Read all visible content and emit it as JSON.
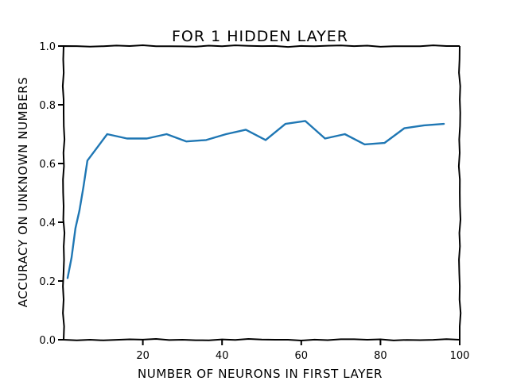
{
  "chart_data": {
    "type": "line",
    "title": "FOR 1 HIDDEN LAYER",
    "xlabel": "NUMBER OF NEURONS IN FIRST LAYER",
    "ylabel": "ACCURACY ON UNKNOWN NUMBERS",
    "xlim": [
      0,
      100
    ],
    "ylim": [
      0.0,
      1.0
    ],
    "x_ticks": [
      {
        "value": 20,
        "label": "20"
      },
      {
        "value": 40,
        "label": "40"
      },
      {
        "value": 60,
        "label": "60"
      },
      {
        "value": 80,
        "label": "80"
      },
      {
        "value": 100,
        "label": "100"
      }
    ],
    "y_ticks": [
      {
        "value": 0.0,
        "label": "0.0"
      },
      {
        "value": 0.2,
        "label": "0.2"
      },
      {
        "value": 0.4,
        "label": "0.4"
      },
      {
        "value": 0.6,
        "label": "0.6"
      },
      {
        "value": 0.8,
        "label": "0.8"
      },
      {
        "value": 1.0,
        "label": "1.0"
      }
    ],
    "grid": false,
    "style": "xkcd",
    "series": [
      {
        "color": "#1f77b4",
        "x": [
          1,
          2,
          3,
          4,
          5,
          6,
          11,
          16,
          21,
          26,
          31,
          36,
          41,
          46,
          51,
          56,
          61,
          66,
          71,
          76,
          81,
          86,
          91,
          96
        ],
        "y": [
          0.21,
          0.28,
          0.38,
          0.44,
          0.52,
          0.61,
          0.7,
          0.685,
          0.685,
          0.7,
          0.675,
          0.68,
          0.7,
          0.715,
          0.68,
          0.735,
          0.745,
          0.685,
          0.7,
          0.665,
          0.67,
          0.72,
          0.73,
          0.735
        ]
      }
    ]
  }
}
